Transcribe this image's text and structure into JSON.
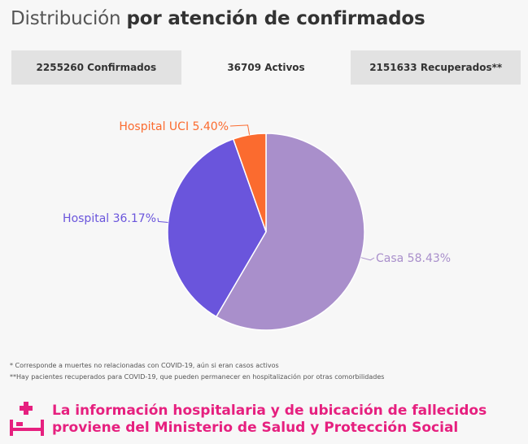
{
  "header": {
    "title_light": "Distribución",
    "title_bold": "por atención de confirmados"
  },
  "tabs": [
    {
      "label": "2255260 Confirmados",
      "active": false
    },
    {
      "label": "36709 Activos",
      "active": true
    },
    {
      "label": "2151633 Recuperados**",
      "active": false
    }
  ],
  "chart_data": {
    "type": "pie",
    "slices": [
      {
        "label": "Casa 58.43%",
        "name": "Casa",
        "value": 58.43,
        "color": "#a98fcb"
      },
      {
        "label": "Hospital 36.17%",
        "name": "Hospital",
        "value": 36.17,
        "color": "#6a55dc"
      },
      {
        "label": "Hospital UCI 5.40%",
        "name": "Hospital UCI",
        "value": 5.4,
        "color": "#fb6b2f"
      }
    ]
  },
  "notes": {
    "note1": "* Corresponde a muertes no relacionadas con COVID-19, aún si eran casos activos",
    "note2": "**Hay pacientes recuperados para COVID-19, que pueden permanecer en hospitalización por otras comorbilidades"
  },
  "footer": {
    "line1": "La información hospitalaria y de ubicación de fallecidos",
    "line2": "proviene del Ministerio de Salud y Protección Social",
    "icon": "hospital-bed-icon",
    "color": "#e6207f"
  }
}
